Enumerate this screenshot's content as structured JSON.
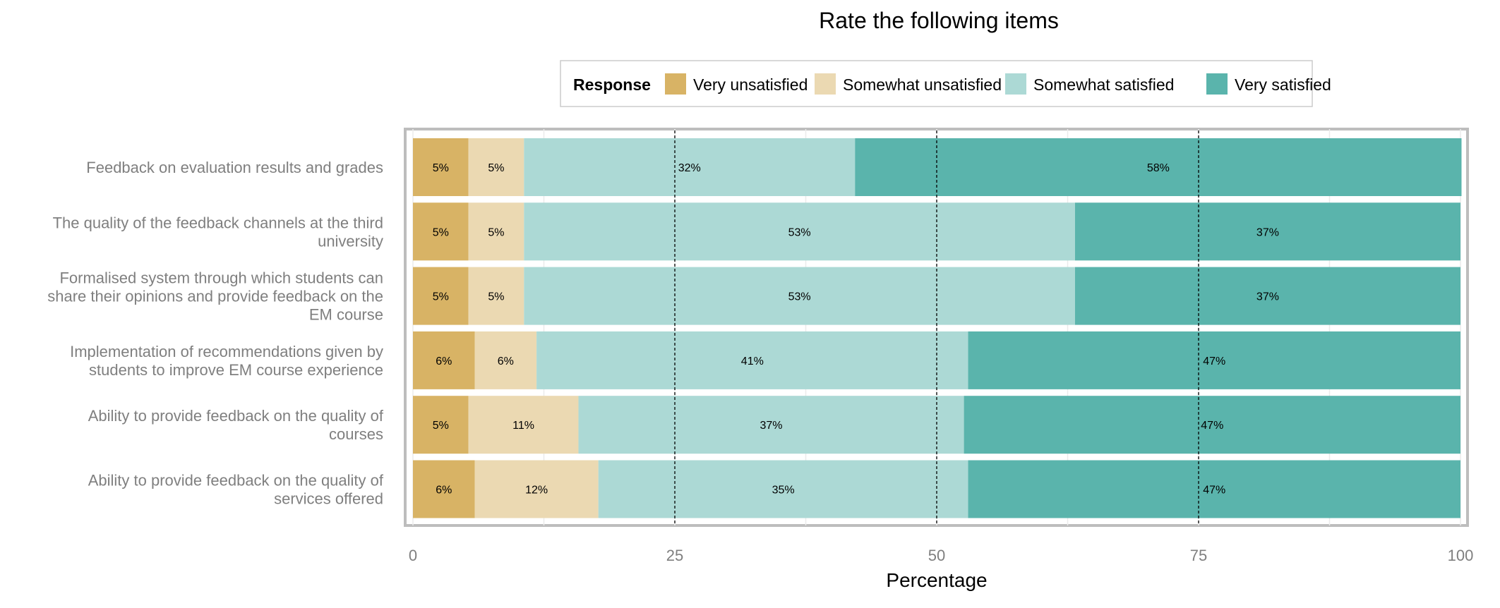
{
  "chart_data": {
    "type": "bar",
    "orientation": "horizontal",
    "stacked": true,
    "title": "Rate the following items",
    "xlabel": "Percentage",
    "ylabel": "",
    "xlim": [
      0,
      100
    ],
    "x_ticks": [
      0,
      25,
      50,
      75,
      100
    ],
    "reference_lines": [
      25,
      50,
      75
    ],
    "grid": true,
    "legend": {
      "title": "Response",
      "placement": "top"
    },
    "categories": [
      "Feedback on evaluation results and grades",
      "The quality of the feedback channels at the third university",
      "Formalised system through which students can share their opinions and provide feedback on the EM course",
      "Implementation of recommendations given by students to improve EM course experience",
      "Ability to provide feedback on the quality of courses",
      "Ability to provide feedback on the quality of services offered"
    ],
    "category_lines": [
      [
        "Feedback on evaluation results and grades"
      ],
      [
        "The quality of the feedback channels at the third",
        "university"
      ],
      [
        "Formalised system through which students can",
        "share their opinions and provide feedback on the",
        "EM course"
      ],
      [
        "Implementation of recommendations given by",
        "students to improve EM course experience"
      ],
      [
        "Ability to provide feedback on the quality of",
        "courses"
      ],
      [
        "Ability to provide feedback on the quality of",
        "services offered"
      ]
    ],
    "series": [
      {
        "name": "Very unsatisfied",
        "color": "#d8b365",
        "values": [
          5.3,
          5.3,
          5.3,
          5.9,
          5.3,
          5.9
        ],
        "labels": [
          "5%",
          "5%",
          "5%",
          "6%",
          "5%",
          "6%"
        ]
      },
      {
        "name": "Somewhat unsatisfied",
        "color": "#ebd9b2",
        "values": [
          5.3,
          5.3,
          5.3,
          5.9,
          10.5,
          11.8
        ],
        "labels": [
          "5%",
          "5%",
          "5%",
          "6%",
          "11%",
          "12%"
        ]
      },
      {
        "name": "Somewhat satisfied",
        "color": "#acd9d5",
        "values": [
          31.6,
          52.6,
          52.6,
          41.2,
          36.8,
          35.3
        ],
        "labels": [
          "32%",
          "53%",
          "53%",
          "41%",
          "37%",
          "35%"
        ]
      },
      {
        "name": "Very satisfied",
        "color": "#5ab4ac",
        "values": [
          57.9,
          36.8,
          36.8,
          47.0,
          47.4,
          47.0
        ],
        "labels": [
          "58%",
          "37%",
          "37%",
          "47%",
          "47%",
          "47%"
        ]
      }
    ]
  }
}
